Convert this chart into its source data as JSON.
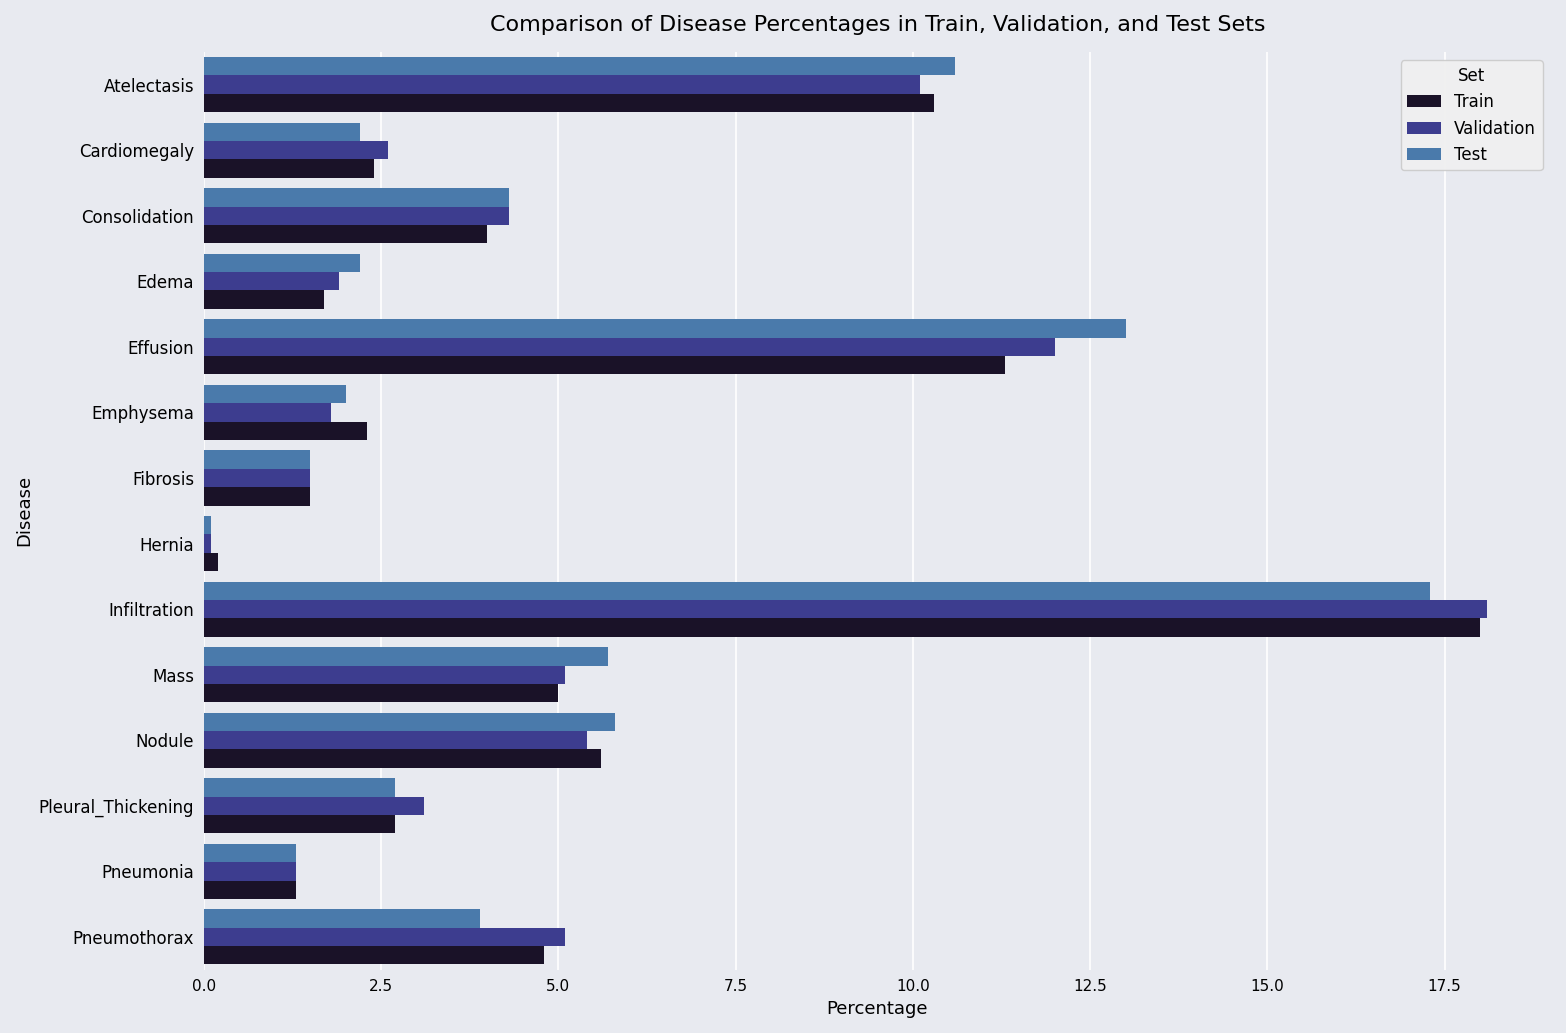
{
  "title": "Comparison of Disease Percentages in Train, Validation, and Test Sets",
  "xlabel": "Percentage",
  "ylabel": "Disease",
  "diseases": [
    "Atelectasis",
    "Cardiomegaly",
    "Consolidation",
    "Edema",
    "Effusion",
    "Emphysema",
    "Fibrosis",
    "Hernia",
    "Infiltration",
    "Mass",
    "Nodule",
    "Pleural_Thickening",
    "Pneumonia",
    "Pneumothorax"
  ],
  "train": [
    10.3,
    2.4,
    4.0,
    1.7,
    11.3,
    2.3,
    1.5,
    0.2,
    18.0,
    5.0,
    5.6,
    2.7,
    1.3,
    4.8
  ],
  "validation": [
    10.1,
    2.6,
    4.3,
    1.9,
    12.0,
    1.8,
    1.5,
    0.1,
    18.1,
    5.1,
    5.4,
    3.1,
    1.3,
    5.1
  ],
  "test": [
    10.6,
    2.2,
    4.3,
    2.2,
    13.0,
    2.0,
    1.5,
    0.1,
    17.3,
    5.7,
    5.8,
    2.7,
    1.3,
    3.9
  ],
  "colors": {
    "Train": "#1a1228",
    "Validation": "#3d3d8f",
    "Test": "#4a7aab"
  },
  "background_color": "#e8eaf0",
  "legend_bg": "#f0f0f0",
  "bar_height": 0.28,
  "figsize": [
    15.66,
    10.33
  ],
  "dpi": 100
}
